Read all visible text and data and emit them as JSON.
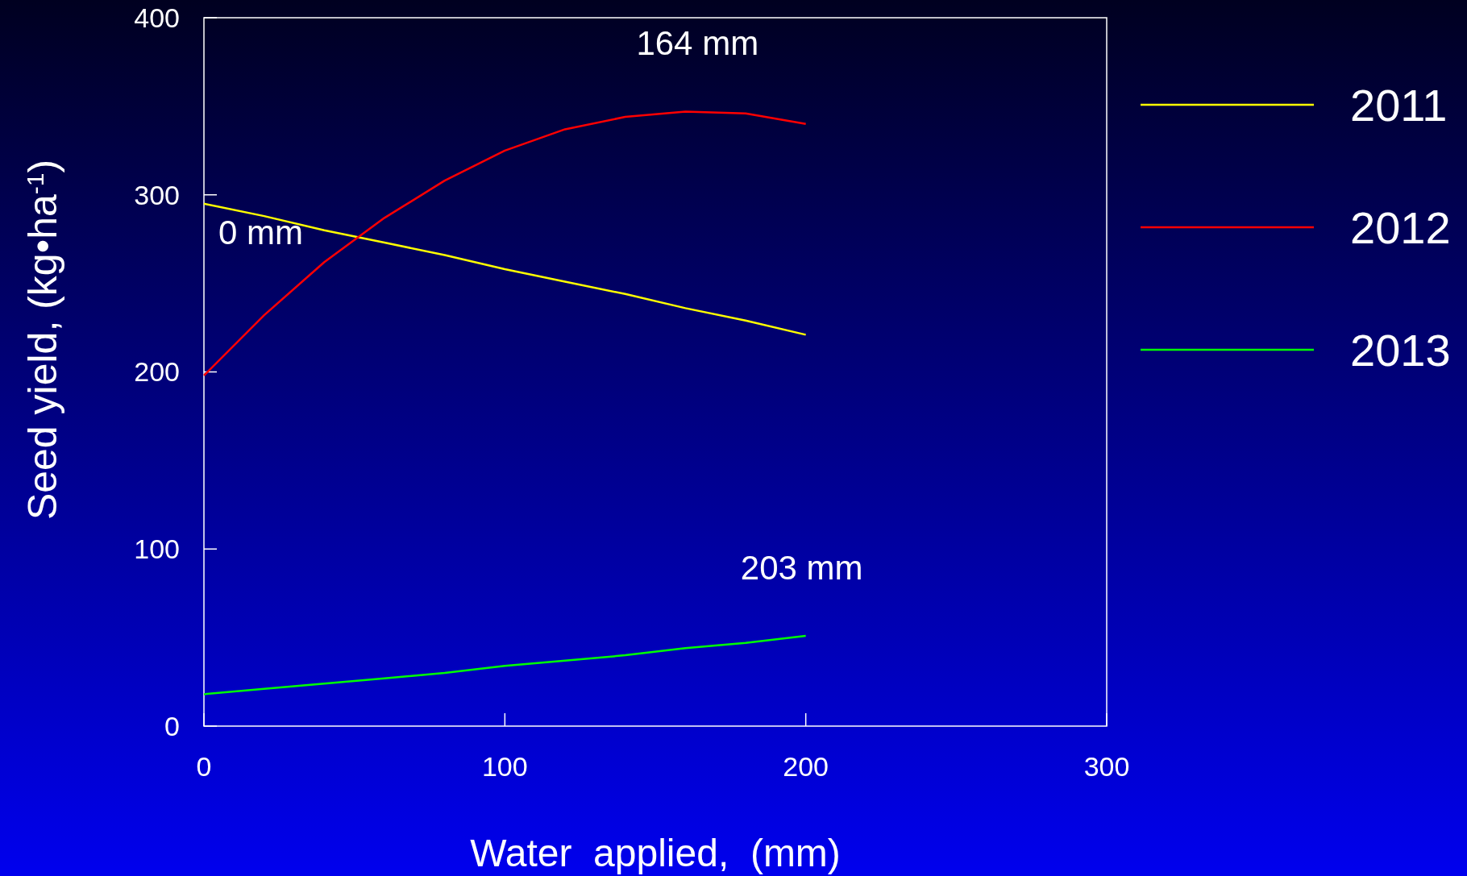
{
  "chart_data": {
    "type": "line",
    "xlabel": "Water  applied,  (mm)",
    "ylabel": "Seed yield, (kg•ha$^{-1}$)",
    "xlim": [
      0,
      300
    ],
    "xticks": [
      0,
      100,
      200,
      300
    ],
    "ylim": [
      0,
      400
    ],
    "yticks": [
      0,
      100,
      200,
      300,
      400
    ],
    "x": [
      0,
      20,
      40,
      60,
      80,
      100,
      120,
      140,
      160,
      180,
      200
    ],
    "series": [
      {
        "name": "2011",
        "color": "#ffff00",
        "values": [
          295,
          288,
          280,
          273,
          266,
          258,
          251,
          244,
          236,
          229,
          221
        ]
      },
      {
        "name": "2012",
        "color": "#ff0000",
        "values": [
          198,
          232,
          262,
          287,
          308,
          325,
          337,
          344,
          347,
          346,
          340
        ]
      },
      {
        "name": "2013",
        "color": "#00ff00",
        "values": [
          18,
          21,
          24,
          27,
          30,
          34,
          37,
          40,
          44,
          47,
          51
        ]
      }
    ],
    "annotations": [
      {
        "text": "0 mm",
        "x": 0,
        "y": 295
      },
      {
        "text": "164 mm",
        "x": 164,
        "y": 347
      },
      {
        "text": "203 mm",
        "x": 200,
        "y": 51
      }
    ],
    "legend": "right",
    "grid": false,
    "marker": "none",
    "line_style": "solid"
  }
}
